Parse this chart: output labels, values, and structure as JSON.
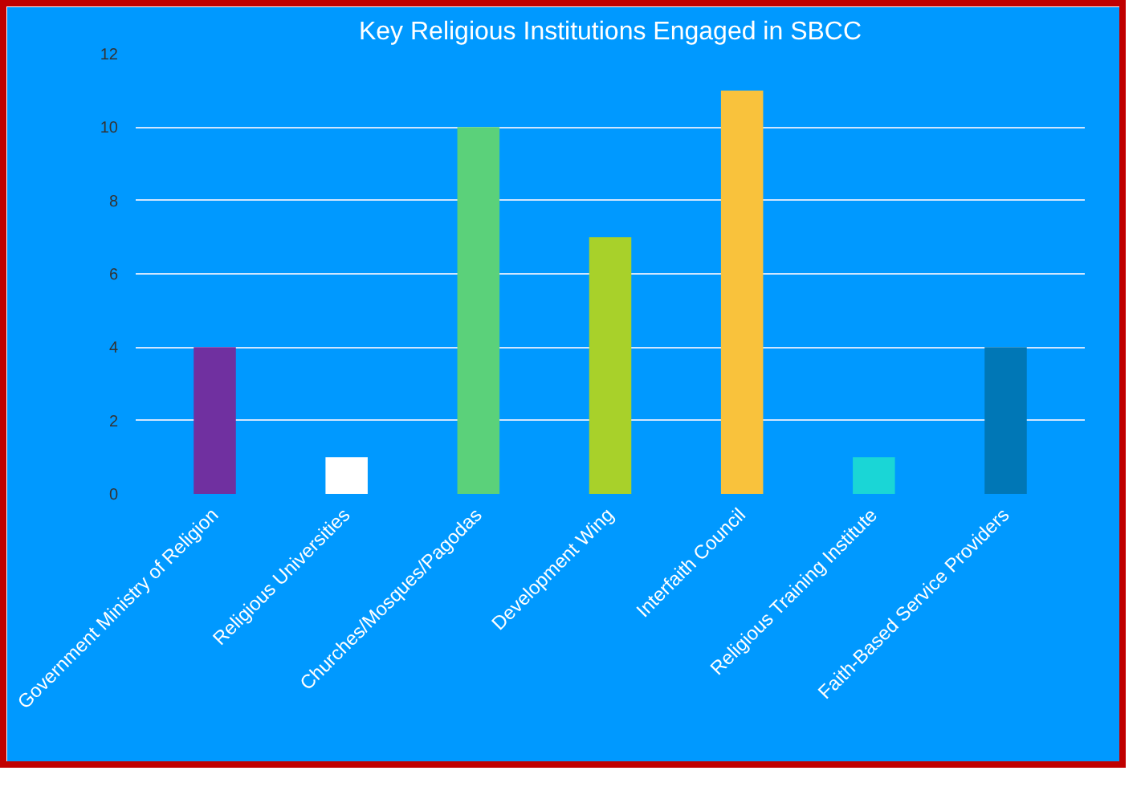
{
  "chart_data": {
    "type": "bar",
    "title": "Key Religious Institutions Engaged in SBCC",
    "categories": [
      "Government Ministry of Religion",
      "Religious Universities",
      "Churches/Mosques/Pagodas",
      "Development Wing",
      "Interfaith Council",
      "Religious Training Institute",
      "Faith-Based Service Providers"
    ],
    "values": [
      4,
      1,
      10,
      7,
      11,
      1,
      4
    ],
    "colors": [
      "#7030a0",
      "#ffffff",
      "#5bd17a",
      "#a8d12a",
      "#f9c23c",
      "#1ad6d6",
      "#0077b6"
    ],
    "ylim": [
      0,
      12
    ],
    "yticks": [
      0,
      2,
      4,
      6,
      8,
      10,
      12
    ],
    "grid": "y"
  }
}
